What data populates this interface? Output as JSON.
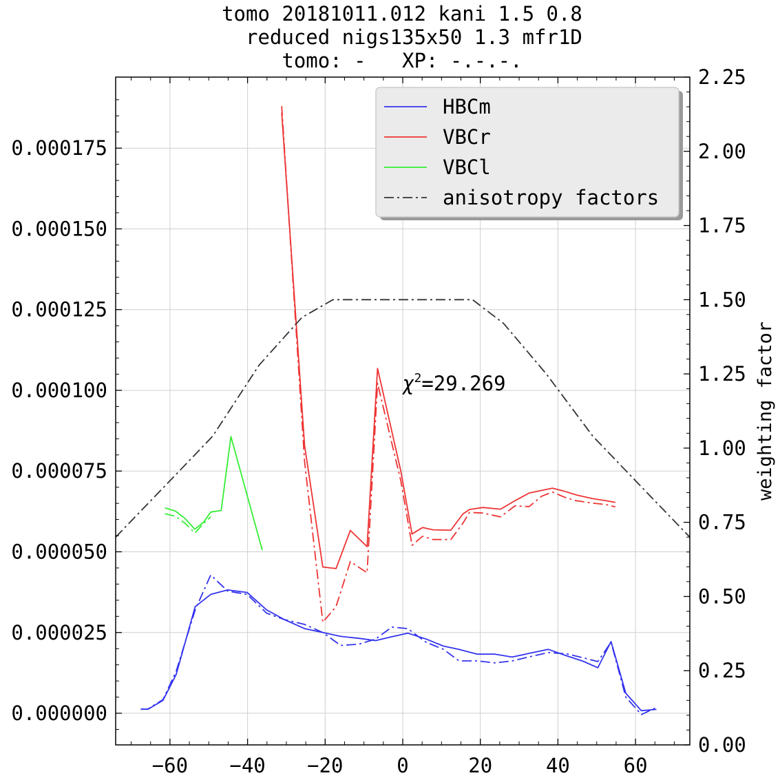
{
  "chart_data": {
    "type": "line",
    "title_lines": [
      "tomo 20181011.012 kani 1.5 0.8",
      "  reduced nigs135x50 1.3 mfr1D",
      "tomo: -   XP: -.-.-."
    ],
    "xlabel": "",
    "ylabel": "",
    "y2label": "weighting factor",
    "xlim": [
      -74,
      74
    ],
    "ylim": [
      -9.8e-06,
      0.000197
    ],
    "y2lim": [
      0,
      2.25
    ],
    "x_ticks": [
      -60,
      -40,
      -20,
      0,
      20,
      40,
      60
    ],
    "x_tick_labels": [
      "−60",
      "−40",
      "−20",
      "0",
      "20",
      "40",
      "60"
    ],
    "y_ticks": [
      0,
      2.5e-05,
      5e-05,
      7.5e-05,
      0.0001,
      0.000125,
      0.00015,
      0.000175
    ],
    "y_tick_labels": [
      "0.000000",
      "0.000025",
      "0.000050",
      "0.000075",
      "0.000100",
      "0.000125",
      "0.000150",
      "0.000175"
    ],
    "y2_ticks": [
      0,
      0.25,
      0.5,
      0.75,
      1.0,
      1.25,
      1.5,
      1.75,
      2.0,
      2.25
    ],
    "y2_tick_labels": [
      "0.00",
      "0.25",
      "0.50",
      "0.75",
      "1.00",
      "1.25",
      "1.50",
      "1.75",
      "2.00",
      "2.25"
    ],
    "grid": true,
    "legend_position": "top-right",
    "annotation": {
      "prefix": "χ",
      "sup": "2",
      "text": "=29.269",
      "x": 0,
      "y": 0.0001
    },
    "legend": [
      {
        "label": "HBCm",
        "color": "#3333ee",
        "dash": "solid"
      },
      {
        "label": "VBCr",
        "color": "#ee3333",
        "dash": "solid"
      },
      {
        "label": "VBCl",
        "color": "#33ee33",
        "dash": "solid"
      },
      {
        "label": "anisotropy factors",
        "color": "#333333",
        "dash": "dashdot"
      }
    ],
    "series": [
      {
        "name": "HBCm",
        "color": "#3333ee",
        "dash": "solid",
        "axis": "left",
        "x": [
          -67.5,
          -65.7,
          -61.8,
          -58.4,
          -53.5,
          -49.5,
          -45.1,
          -40.1,
          -35.1,
          -30.5,
          -25.3,
          -20.6,
          -16,
          -11.3,
          -7,
          -2.8,
          1.3,
          6,
          10.5,
          14.5,
          19.2,
          23.8,
          28.2,
          32.8,
          37.5,
          42.2,
          46.5,
          50.3,
          53.7,
          57.5,
          61.5,
          65.4
        ],
        "y": [
          1.3e-06,
          1.2e-06,
          4e-06,
          1.2e-05,
          3.3e-05,
          3.68e-05,
          3.82e-05,
          3.74e-05,
          3.2e-05,
          2.9e-05,
          2.62e-05,
          2.5e-05,
          2.38e-05,
          2.32e-05,
          2.25e-05,
          2.37e-05,
          2.48e-05,
          2.3e-05,
          2.08e-05,
          1.98e-05,
          1.83e-05,
          1.83e-05,
          1.74e-05,
          1.86e-05,
          1.98e-05,
          1.78e-05,
          1.61e-05,
          1.41e-05,
          2.22e-05,
          6.2e-06,
          8e-07,
          1.2e-06
        ]
      },
      {
        "name": "HBCm",
        "color": "#3333ee",
        "dash": "dashdot",
        "axis": "left",
        "x": [
          -67.5,
          -65.7,
          -61.8,
          -58.4,
          -53.5,
          -49.5,
          -45.1,
          -40.1,
          -35.1,
          -30.5,
          -25.3,
          -20.6,
          -16,
          -11.3,
          -7,
          -2.8,
          1.3,
          6,
          10.5,
          14.5,
          19.2,
          23.8,
          28.2,
          32.8,
          37.5,
          42.2,
          46.5,
          50.3,
          53.7,
          57.5,
          61.5,
          65.4
        ],
        "y": [
          1.2e-06,
          1.3e-06,
          4.2e-06,
          1.3e-05,
          3.2e-05,
          4.28e-05,
          3.78e-05,
          3.68e-05,
          3.1e-05,
          2.9e-05,
          2.75e-05,
          2.5e-05,
          2.1e-05,
          2.14e-05,
          2.3e-05,
          2.67e-05,
          2.62e-05,
          2.2e-05,
          1.98e-05,
          1.62e-05,
          1.62e-05,
          1.56e-05,
          1.62e-05,
          1.75e-05,
          1.88e-05,
          1.84e-05,
          1.72e-05,
          1.6e-05,
          2.2e-05,
          5e-06,
          -4e-07,
          1.8e-06
        ]
      },
      {
        "name": "VBCr",
        "color": "#ee3333",
        "dash": "solid",
        "axis": "left",
        "x": [
          -31.2,
          -25.3,
          -20.6,
          -17.2,
          -13.5,
          -9.2,
          -6.5,
          -0.5,
          2.4,
          5.1,
          7.8,
          12.4,
          15.5,
          17.2,
          20.6,
          25.2,
          28.9,
          32.6,
          35.8,
          38.6,
          41.5,
          44.8,
          48.8,
          52.5,
          54.8
        ],
        "y": [
          0.000186,
          8.3e-05,
          4.53e-05,
          4.48e-05,
          5.66e-05,
          5.16e-05,
          0.0001068,
          7.5e-05,
          5.55e-05,
          5.75e-05,
          5.68e-05,
          5.67e-05,
          6.17e-05,
          6.31e-05,
          6.37e-05,
          6.32e-05,
          6.58e-05,
          6.82e-05,
          6.9e-05,
          6.97e-05,
          6.88e-05,
          6.76e-05,
          6.65e-05,
          6.58e-05,
          6.53e-05
        ]
      },
      {
        "name": "VBCr",
        "color": "#ee3333",
        "dash": "dashdot",
        "axis": "left",
        "x": [
          -31.2,
          -25.3,
          -20.6,
          -17.2,
          -13.5,
          -9.2,
          -6.5,
          -0.5,
          2.4,
          5.1,
          7.8,
          12.4,
          15.5,
          17.2,
          20.6,
          25.2,
          28.9,
          32.6,
          35.8,
          38.6,
          41.5,
          44.8,
          48.8,
          52.5,
          54.8
        ],
        "y": [
          0.000188,
          7.8e-05,
          2.82e-05,
          3.3e-05,
          4.7e-05,
          4.35e-05,
          0.0001022,
          7.2e-05,
          5.2e-05,
          5.48e-05,
          5.38e-05,
          5.38e-05,
          5.88e-05,
          6.22e-05,
          6.2e-05,
          6.08e-05,
          6.42e-05,
          6.4e-05,
          6.72e-05,
          6.85e-05,
          6.7e-05,
          6.58e-05,
          6.51e-05,
          6.46e-05,
          6.39e-05
        ]
      },
      {
        "name": "VBCl",
        "color": "#33ee33",
        "dash": "solid",
        "axis": "left",
        "x": [
          -61.3,
          -58.6,
          -56.1,
          -53.6,
          -51.3,
          -49.5,
          -46.8,
          -44.3,
          -36.2
        ],
        "y": [
          6.36e-05,
          6.26e-05,
          6.03e-05,
          5.7e-05,
          5.92e-05,
          6.23e-05,
          6.28e-05,
          8.57e-05,
          5.05e-05
        ]
      },
      {
        "name": "VBCl",
        "color": "#33ee33",
        "dash": "dashdot",
        "axis": "left",
        "x": [
          -61.3,
          -58.6,
          -56.1,
          -53.6,
          -51.3,
          -49.5
        ],
        "y": [
          6.18e-05,
          6.1e-05,
          5.88e-05,
          5.58e-05,
          5.88e-05,
          6.08e-05
        ]
      },
      {
        "name": "anisotropy factors",
        "color": "#333333",
        "dash": "dashdot",
        "axis": "right",
        "x": [
          -74,
          -60,
          -49,
          -37,
          -26,
          -18,
          -10,
          0,
          10,
          18,
          26,
          37,
          49,
          60,
          74
        ],
        "y": [
          0.7,
          0.89,
          1.04,
          1.28,
          1.44,
          1.5,
          1.5,
          1.5,
          1.5,
          1.5,
          1.42,
          1.25,
          1.04,
          0.89,
          0.7
        ]
      }
    ]
  }
}
